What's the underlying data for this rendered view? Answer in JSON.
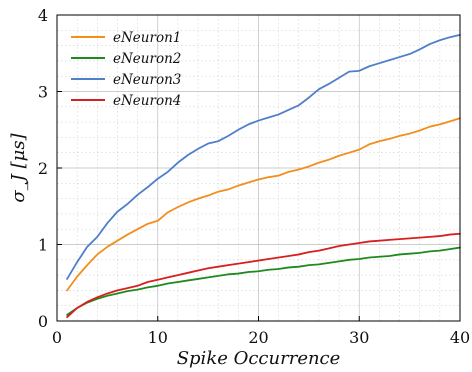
{
  "chart_data": {
    "type": "line",
    "xlabel": "Spike Occurrence",
    "ylabel": "σ_J [μs]",
    "xlim": [
      0,
      40
    ],
    "ylim": [
      0,
      4
    ],
    "x_ticks": [
      "0",
      "10",
      "20",
      "30",
      "40"
    ],
    "y_ticks": [
      "0",
      "1",
      "2",
      "3",
      "4"
    ],
    "grid": true,
    "legend_position": "top-left",
    "x": [
      1,
      2,
      3,
      4,
      5,
      6,
      7,
      8,
      9,
      10,
      11,
      12,
      13,
      14,
      15,
      16,
      17,
      18,
      19,
      20,
      21,
      22,
      23,
      24,
      25,
      26,
      27,
      28,
      29,
      30,
      31,
      32,
      33,
      34,
      35,
      36,
      37,
      38,
      39,
      40
    ],
    "series": [
      {
        "name": "eNeuron1",
        "color": "#f28e1c",
        "values": [
          0.4,
          0.58,
          0.73,
          0.87,
          0.97,
          1.05,
          1.13,
          1.2,
          1.27,
          1.31,
          1.42,
          1.49,
          1.55,
          1.6,
          1.64,
          1.69,
          1.72,
          1.77,
          1.81,
          1.85,
          1.88,
          1.9,
          1.95,
          1.98,
          2.02,
          2.07,
          2.11,
          2.16,
          2.2,
          2.24,
          2.31,
          2.35,
          2.38,
          2.42,
          2.45,
          2.49,
          2.54,
          2.57,
          2.61,
          2.65
        ]
      },
      {
        "name": "eNeuron2",
        "color": "#1e8a1e",
        "values": [
          0.08,
          0.17,
          0.24,
          0.29,
          0.33,
          0.36,
          0.39,
          0.41,
          0.44,
          0.46,
          0.49,
          0.51,
          0.53,
          0.55,
          0.57,
          0.59,
          0.61,
          0.62,
          0.64,
          0.65,
          0.67,
          0.68,
          0.7,
          0.71,
          0.73,
          0.74,
          0.76,
          0.78,
          0.8,
          0.81,
          0.83,
          0.84,
          0.85,
          0.87,
          0.88,
          0.89,
          0.91,
          0.92,
          0.94,
          0.96
        ]
      },
      {
        "name": "eNeuron3",
        "color": "#4f7fca",
        "values": [
          0.55,
          0.77,
          0.97,
          1.1,
          1.28,
          1.43,
          1.53,
          1.65,
          1.75,
          1.86,
          1.95,
          2.07,
          2.17,
          2.25,
          2.32,
          2.35,
          2.42,
          2.5,
          2.57,
          2.62,
          2.66,
          2.7,
          2.76,
          2.82,
          2.92,
          3.03,
          3.1,
          3.18,
          3.26,
          3.27,
          3.33,
          3.37,
          3.41,
          3.45,
          3.49,
          3.55,
          3.62,
          3.67,
          3.71,
          3.74
        ]
      },
      {
        "name": "eNeuron4",
        "color": "#d81e1e",
        "values": [
          0.05,
          0.17,
          0.25,
          0.31,
          0.36,
          0.4,
          0.43,
          0.46,
          0.51,
          0.54,
          0.57,
          0.6,
          0.63,
          0.66,
          0.69,
          0.71,
          0.73,
          0.75,
          0.77,
          0.79,
          0.81,
          0.83,
          0.85,
          0.87,
          0.9,
          0.92,
          0.95,
          0.98,
          1.0,
          1.02,
          1.04,
          1.05,
          1.06,
          1.07,
          1.08,
          1.09,
          1.1,
          1.11,
          1.13,
          1.14
        ]
      }
    ]
  }
}
